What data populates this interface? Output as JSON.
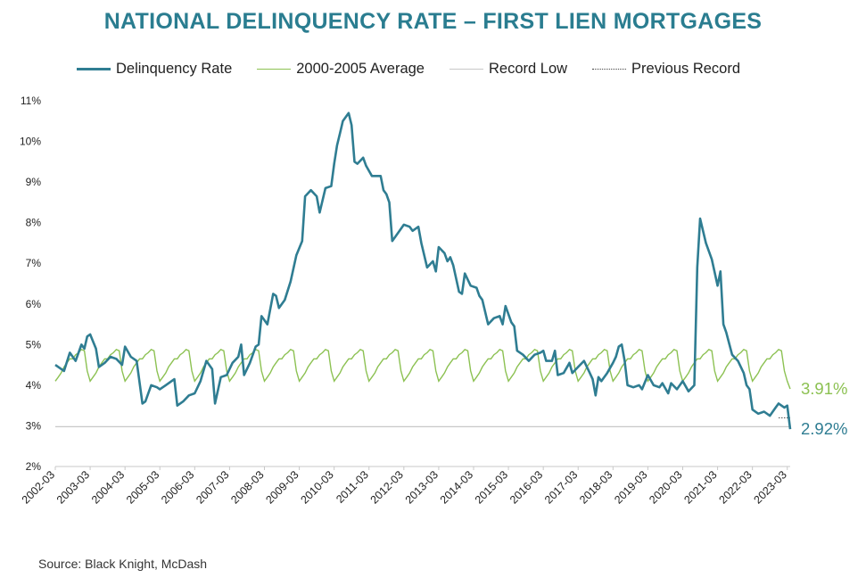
{
  "chart_data": {
    "type": "line",
    "title": "NATIONAL DELINQUENCY RATE – FIRST LIEN MORTGAGES",
    "source": "Source: Black Knight, McDash",
    "colors": {
      "title": "#2a7d90",
      "delinquency": "#2f7d92",
      "average": "#8cc152",
      "record_low": "#c8c8c8",
      "previous_record": "#444444",
      "axis": "#c8c8c8"
    },
    "legend": [
      "Delinquency Rate",
      "2000-2005 Average",
      "Record Low",
      "Previous Record"
    ],
    "legend_position": "top",
    "y_ticks": [
      "11%",
      "10%",
      "9%",
      "8%",
      "7%",
      "6%",
      "5%",
      "4%",
      "3%",
      "2%"
    ],
    "ylim": [
      2,
      11
    ],
    "x_ticks": [
      "2002-03",
      "2003-03",
      "2004-03",
      "2005-03",
      "2006-03",
      "2007-03",
      "2008-03",
      "2009-03",
      "2010-03",
      "2011-03",
      "2012-03",
      "2013-03",
      "2014-03",
      "2015-03",
      "2016-03",
      "2017-03",
      "2018-03",
      "2019-03",
      "2020-03",
      "2021-03",
      "2022-03",
      "2023-03"
    ],
    "grid": false,
    "end_labels": {
      "average": "3.91%",
      "delinquency": "2.92%"
    },
    "record_low": 2.98,
    "previous_record_from": "2022-12",
    "average_seasonal": [
      4.85,
      4.35,
      4.1,
      4.2,
      4.3,
      4.45,
      4.55,
      4.65,
      4.65,
      4.75,
      4.8,
      4.88
    ],
    "series": [
      {
        "name": "Delinquency Rate",
        "points": [
          [
            "2002-03",
            4.5
          ],
          [
            "2002-06",
            4.35
          ],
          [
            "2002-08",
            4.8
          ],
          [
            "2002-10",
            4.6
          ],
          [
            "2002-12",
            5.0
          ],
          [
            "2003-01",
            4.9
          ],
          [
            "2003-02",
            5.2
          ],
          [
            "2003-03",
            5.25
          ],
          [
            "2003-05",
            4.9
          ],
          [
            "2003-06",
            4.45
          ],
          [
            "2003-08",
            4.55
          ],
          [
            "2003-10",
            4.7
          ],
          [
            "2003-12",
            4.65
          ],
          [
            "2004-02",
            4.5
          ],
          [
            "2004-03",
            4.95
          ],
          [
            "2004-05",
            4.7
          ],
          [
            "2004-07",
            4.6
          ],
          [
            "2004-09",
            3.55
          ],
          [
            "2004-10",
            3.6
          ],
          [
            "2004-12",
            4.0
          ],
          [
            "2005-02",
            3.95
          ],
          [
            "2005-03",
            3.9
          ],
          [
            "2005-05",
            4.0
          ],
          [
            "2005-07",
            4.1
          ],
          [
            "2005-08",
            4.15
          ],
          [
            "2005-09",
            3.5
          ],
          [
            "2005-11",
            3.6
          ],
          [
            "2006-01",
            3.75
          ],
          [
            "2006-03",
            3.8
          ],
          [
            "2006-05",
            4.1
          ],
          [
            "2006-07",
            4.6
          ],
          [
            "2006-09",
            4.4
          ],
          [
            "2006-10",
            3.55
          ],
          [
            "2006-12",
            4.2
          ],
          [
            "2007-02",
            4.25
          ],
          [
            "2007-04",
            4.55
          ],
          [
            "2007-06",
            4.7
          ],
          [
            "2007-07",
            5.0
          ],
          [
            "2007-08",
            4.25
          ],
          [
            "2007-10",
            4.55
          ],
          [
            "2007-12",
            4.95
          ],
          [
            "2008-01",
            5.0
          ],
          [
            "2008-02",
            5.7
          ],
          [
            "2008-04",
            5.5
          ],
          [
            "2008-06",
            6.25
          ],
          [
            "2008-07",
            6.2
          ],
          [
            "2008-08",
            5.9
          ],
          [
            "2008-10",
            6.1
          ],
          [
            "2008-12",
            6.55
          ],
          [
            "2009-02",
            7.2
          ],
          [
            "2009-04",
            7.55
          ],
          [
            "2009-05",
            8.65
          ],
          [
            "2009-07",
            8.8
          ],
          [
            "2009-09",
            8.65
          ],
          [
            "2009-10",
            8.25
          ],
          [
            "2009-12",
            8.85
          ],
          [
            "2010-02",
            8.9
          ],
          [
            "2010-03",
            9.45
          ],
          [
            "2010-04",
            9.9
          ],
          [
            "2010-05",
            10.2
          ],
          [
            "2010-06",
            10.5
          ],
          [
            "2010-08",
            10.7
          ],
          [
            "2010-09",
            10.4
          ],
          [
            "2010-10",
            9.5
          ],
          [
            "2010-11",
            9.45
          ],
          [
            "2011-01",
            9.6
          ],
          [
            "2011-02",
            9.4
          ],
          [
            "2011-04",
            9.15
          ],
          [
            "2011-07",
            9.15
          ],
          [
            "2011-08",
            8.8
          ],
          [
            "2011-09",
            8.7
          ],
          [
            "2011-10",
            8.5
          ],
          [
            "2011-11",
            7.55
          ],
          [
            "2012-01",
            7.75
          ],
          [
            "2012-03",
            7.95
          ],
          [
            "2012-05",
            7.9
          ],
          [
            "2012-06",
            7.8
          ],
          [
            "2012-08",
            7.9
          ],
          [
            "2012-09",
            7.5
          ],
          [
            "2012-11",
            6.9
          ],
          [
            "2013-01",
            7.05
          ],
          [
            "2013-02",
            6.8
          ],
          [
            "2013-03",
            7.4
          ],
          [
            "2013-05",
            7.25
          ],
          [
            "2013-06",
            7.05
          ],
          [
            "2013-07",
            7.15
          ],
          [
            "2013-08",
            6.95
          ],
          [
            "2013-10",
            6.3
          ],
          [
            "2013-11",
            6.25
          ],
          [
            "2013-12",
            6.75
          ],
          [
            "2014-02",
            6.45
          ],
          [
            "2014-04",
            6.4
          ],
          [
            "2014-05",
            6.2
          ],
          [
            "2014-06",
            6.1
          ],
          [
            "2014-08",
            5.5
          ],
          [
            "2014-10",
            5.65
          ],
          [
            "2014-12",
            5.7
          ],
          [
            "2015-01",
            5.5
          ],
          [
            "2015-02",
            5.95
          ],
          [
            "2015-04",
            5.55
          ],
          [
            "2015-05",
            5.45
          ],
          [
            "2015-06",
            4.85
          ],
          [
            "2015-08",
            4.75
          ],
          [
            "2015-10",
            4.6
          ],
          [
            "2015-12",
            4.75
          ],
          [
            "2016-02",
            4.8
          ],
          [
            "2016-03",
            4.85
          ],
          [
            "2016-04",
            4.6
          ],
          [
            "2016-06",
            4.6
          ],
          [
            "2016-07",
            4.85
          ],
          [
            "2016-08",
            4.25
          ],
          [
            "2016-10",
            4.3
          ],
          [
            "2016-12",
            4.55
          ],
          [
            "2017-01",
            4.3
          ],
          [
            "2017-03",
            4.45
          ],
          [
            "2017-05",
            4.6
          ],
          [
            "2017-07",
            4.3
          ],
          [
            "2017-08",
            4.15
          ],
          [
            "2017-09",
            3.75
          ],
          [
            "2017-10",
            4.2
          ],
          [
            "2017-11",
            4.1
          ],
          [
            "2018-01",
            4.3
          ],
          [
            "2018-03",
            4.55
          ],
          [
            "2018-04",
            4.7
          ],
          [
            "2018-05",
            4.95
          ],
          [
            "2018-06",
            5.0
          ],
          [
            "2018-07",
            4.6
          ],
          [
            "2018-08",
            4.0
          ],
          [
            "2018-10",
            3.95
          ],
          [
            "2018-12",
            4.0
          ],
          [
            "2019-01",
            3.9
          ],
          [
            "2019-03",
            4.25
          ],
          [
            "2019-05",
            4.0
          ],
          [
            "2019-07",
            3.95
          ],
          [
            "2019-08",
            4.05
          ],
          [
            "2019-10",
            3.8
          ],
          [
            "2019-11",
            4.05
          ],
          [
            "2020-01",
            3.9
          ],
          [
            "2020-03",
            4.1
          ],
          [
            "2020-05",
            3.85
          ],
          [
            "2020-07",
            4.0
          ],
          [
            "2020-08",
            6.9
          ],
          [
            "2020-09",
            8.1
          ],
          [
            "2020-11",
            7.5
          ],
          [
            "2021-01",
            7.1
          ],
          [
            "2021-03",
            6.45
          ],
          [
            "2021-04",
            6.8
          ],
          [
            "2021-05",
            5.5
          ],
          [
            "2021-06",
            5.3
          ],
          [
            "2021-08",
            4.75
          ],
          [
            "2021-10",
            4.6
          ],
          [
            "2021-12",
            4.3
          ],
          [
            "2022-01",
            4.0
          ],
          [
            "2022-02",
            3.9
          ],
          [
            "2022-03",
            3.4
          ],
          [
            "2022-05",
            3.3
          ],
          [
            "2022-07",
            3.35
          ],
          [
            "2022-09",
            3.25
          ],
          [
            "2022-11",
            3.45
          ],
          [
            "2022-12",
            3.55
          ],
          [
            "2023-02",
            3.45
          ],
          [
            "2023-03",
            3.5
          ],
          [
            "2023-04",
            2.92
          ]
        ]
      },
      {
        "name": "2000-2005 Average"
      },
      {
        "name": "Record Low"
      },
      {
        "name": "Previous Record"
      }
    ]
  }
}
